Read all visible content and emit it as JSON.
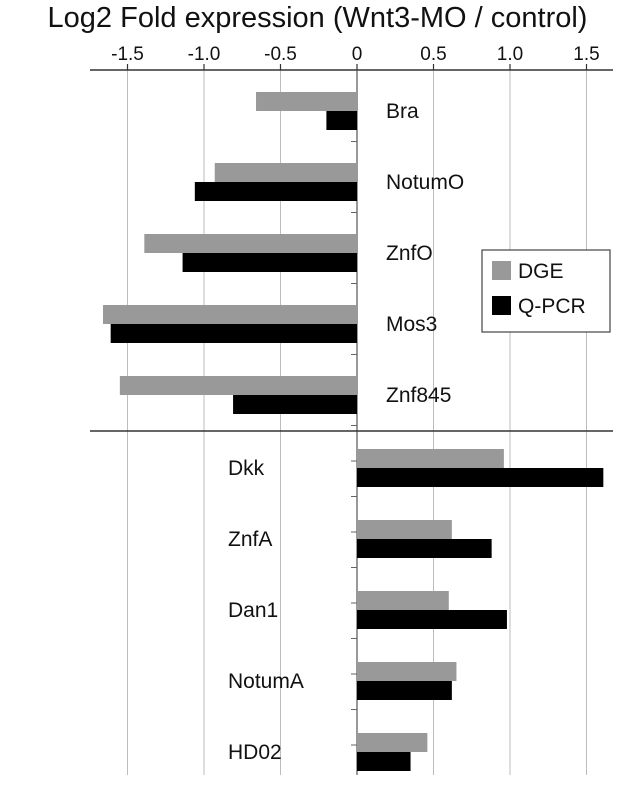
{
  "chart_data": {
    "type": "bar",
    "orientation": "horizontal",
    "title": "Log2 Fold expression (Wnt3-MO / control)",
    "xlabel": "",
    "ylabel": "",
    "x_axis_position": "top",
    "xlim": [
      -1.65,
      1.65
    ],
    "ticks": [
      {
        "value": -1.5,
        "label": "-1.5"
      },
      {
        "value": -1.0,
        "label": "-1.0"
      },
      {
        "value": -0.5,
        "label": "-0.5"
      },
      {
        "value": 0,
        "label": "0"
      },
      {
        "value": 0.5,
        "label": "0.5"
      },
      {
        "value": 1.0,
        "label": "1.0"
      },
      {
        "value": 1.5,
        "label": "1.5"
      }
    ],
    "grid": "vertical",
    "legend_position": "right",
    "categories": [
      "Bra",
      "NotumO",
      "ZnfO",
      "Mos3",
      "Znf845",
      "Dkk",
      "ZnfA",
      "Dan1",
      "NotumA",
      "HD02"
    ],
    "series": [
      {
        "name": "DGE",
        "color": "#999999",
        "values": [
          -0.66,
          -0.93,
          -1.39,
          -1.66,
          -1.55,
          0.96,
          0.62,
          0.6,
          0.65,
          0.46
        ]
      },
      {
        "name": "Q-PCR",
        "color": "#000000",
        "values": [
          -0.2,
          -1.06,
          -1.14,
          -1.61,
          -0.81,
          1.61,
          0.88,
          0.98,
          0.62,
          0.35
        ]
      }
    ]
  }
}
